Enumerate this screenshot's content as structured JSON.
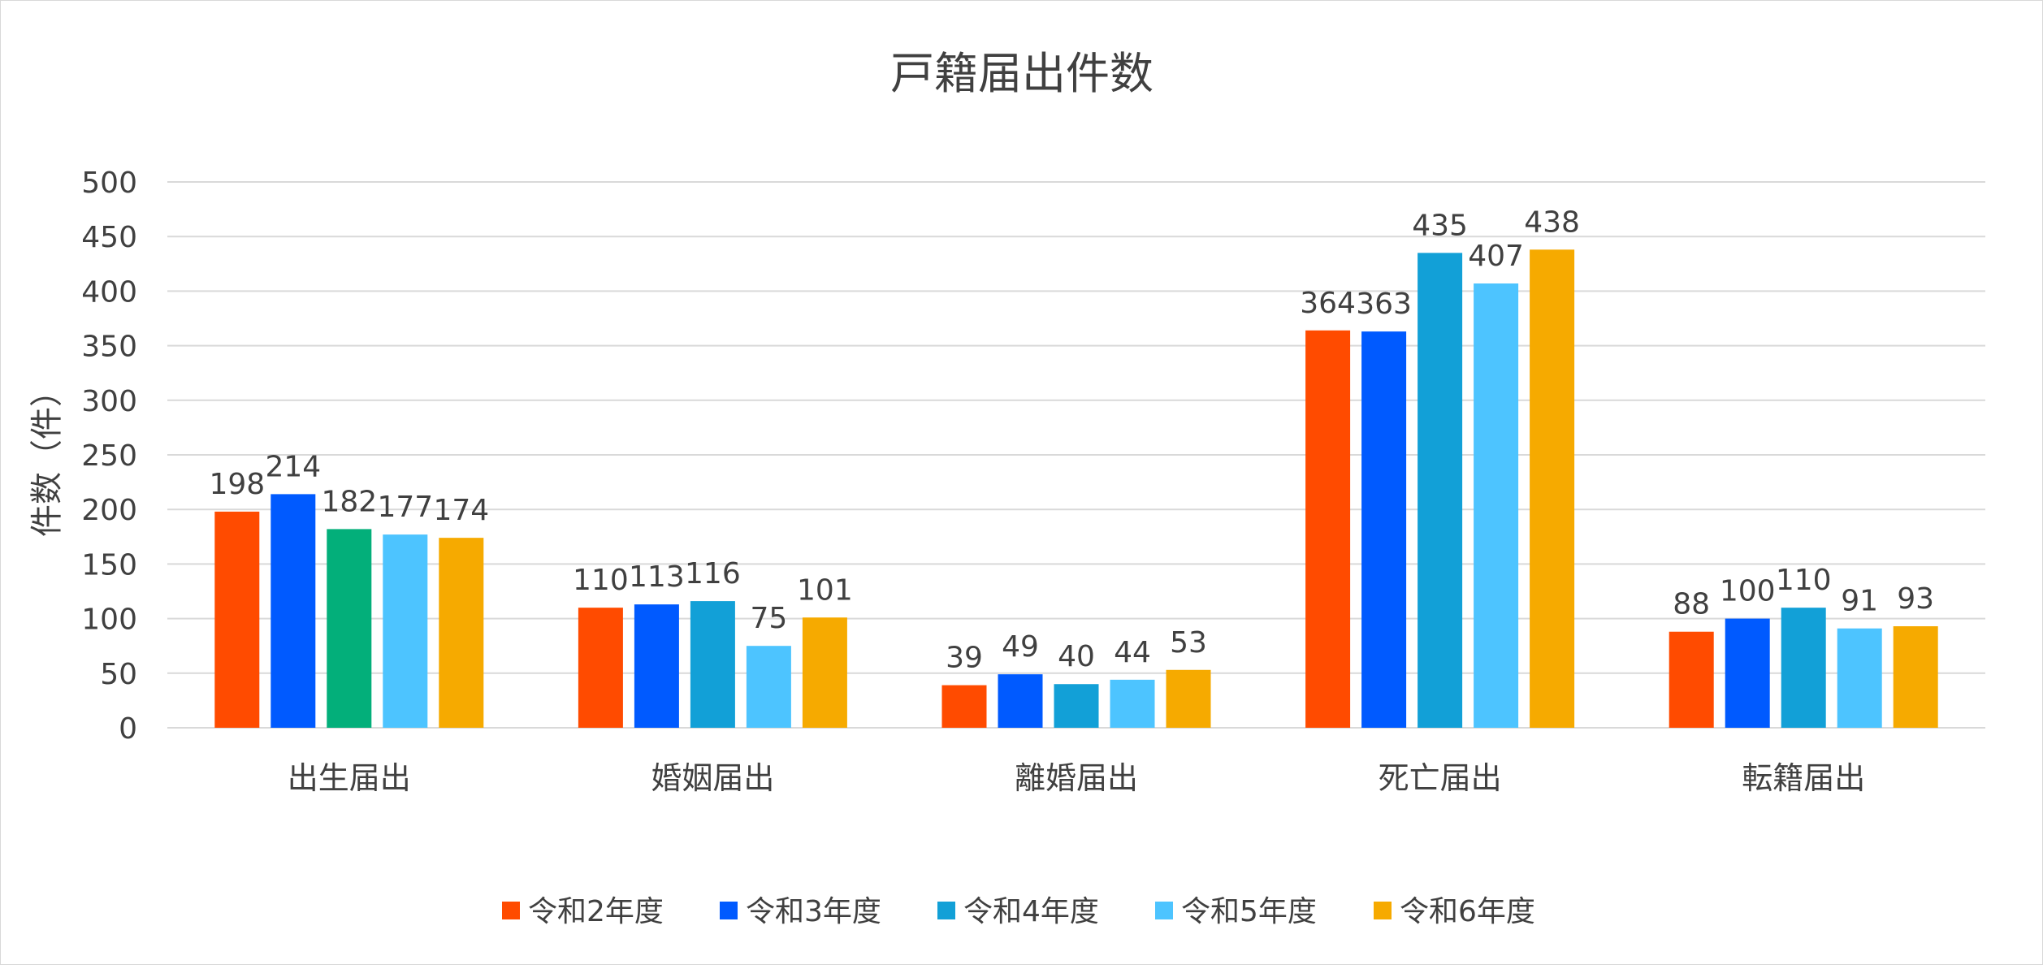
{
  "chart_data": {
    "type": "bar",
    "title": "戸籍届出件数",
    "xlabel": "",
    "ylabel": "件数（件）",
    "ylim": [
      0,
      500
    ],
    "yticks": [
      0,
      50,
      100,
      150,
      200,
      250,
      300,
      350,
      400,
      450,
      500
    ],
    "grid": true,
    "legend_position": "bottom",
    "categories": [
      "出生届出",
      "婚姻届出",
      "離婚届出",
      "死亡届出",
      "転籍届出"
    ],
    "series": [
      {
        "name": "令和2年度",
        "color": "#FF4B00",
        "values": [
          198,
          110,
          39,
          364,
          88
        ]
      },
      {
        "name": "令和3年度",
        "color": "#005AFF",
        "values": [
          214,
          113,
          49,
          363,
          100
        ]
      },
      {
        "name": "令和4年度",
        "color": "#12A0D7",
        "values": [
          182,
          116,
          40,
          435,
          110
        ],
        "point_colors": {
          "0": "#03AF7A"
        }
      },
      {
        "name": "令和5年度",
        "color": "#4DC4FF",
        "values": [
          177,
          75,
          44,
          407,
          91
        ]
      },
      {
        "name": "令和6年度",
        "color": "#F6AA00",
        "values": [
          174,
          101,
          53,
          438,
          93
        ]
      }
    ]
  }
}
